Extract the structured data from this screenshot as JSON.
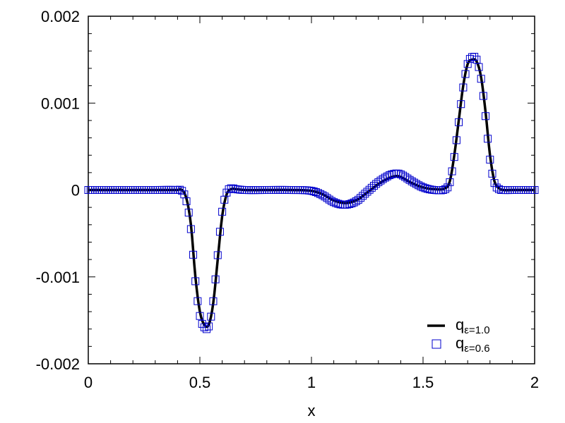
{
  "chart_data": {
    "type": "line",
    "title": "",
    "xlabel": "x",
    "ylabel": "",
    "xlim": [
      0,
      2
    ],
    "ylim": [
      -0.002,
      0.002
    ],
    "x_ticks": [
      0,
      0.5,
      1,
      1.5,
      2
    ],
    "x_tick_labels": [
      "0",
      "0.5",
      "1",
      "1.5",
      "2"
    ],
    "y_ticks": [
      -0.002,
      -0.001,
      0,
      0.001,
      0.002
    ],
    "y_tick_labels": [
      "-0.002",
      "-0.001",
      "0",
      "0.001",
      "0.002"
    ],
    "grid": false,
    "legend_position": "bottom-right",
    "series": [
      {
        "name": "q",
        "name_subscript": "ε=1.0",
        "style": "line",
        "color": "#000000",
        "x": [
          0,
          0.1,
          0.2,
          0.3,
          0.4,
          0.42,
          0.44,
          0.46,
          0.48,
          0.5,
          0.52,
          0.54,
          0.56,
          0.58,
          0.6,
          0.62,
          0.64,
          0.66,
          0.7,
          0.8,
          0.9,
          1.0,
          1.05,
          1.1,
          1.15,
          1.2,
          1.25,
          1.3,
          1.35,
          1.38,
          1.4,
          1.45,
          1.5,
          1.55,
          1.6,
          1.62,
          1.64,
          1.66,
          1.68,
          1.7,
          1.72,
          1.74,
          1.76,
          1.78,
          1.8,
          1.82,
          1.84,
          1.86,
          1.9,
          2.0
        ],
        "y": [
          0,
          0,
          0,
          0,
          0,
          0,
          -0.0001,
          -0.0004,
          -0.001,
          -0.0014,
          -0.00155,
          -0.00155,
          -0.0013,
          -0.0008,
          -0.0003,
          -5e-05,
          1e-05,
          1e-05,
          0,
          0,
          0,
          -1e-05,
          -5e-05,
          -0.00012,
          -0.00015,
          -0.00012,
          -3e-05,
          7e-05,
          0.00014,
          0.00016,
          0.00015,
          8e-05,
          3e-05,
          1e-05,
          2e-05,
          0.0001,
          0.0004,
          0.0008,
          0.0012,
          0.00145,
          0.0015,
          0.00148,
          0.0013,
          0.0009,
          0.0004,
          0.0001,
          2e-05,
          0,
          0,
          0
        ]
      },
      {
        "name": "q",
        "name_subscript": "ε=0.6",
        "style": "open-square",
        "color": "#0000cc",
        "x": [
          0,
          0.1,
          0.2,
          0.3,
          0.4,
          0.42,
          0.44,
          0.46,
          0.48,
          0.5,
          0.52,
          0.54,
          0.56,
          0.58,
          0.6,
          0.62,
          0.64,
          0.66,
          0.7,
          0.8,
          0.9,
          1.0,
          1.05,
          1.1,
          1.15,
          1.2,
          1.25,
          1.3,
          1.35,
          1.38,
          1.4,
          1.45,
          1.5,
          1.55,
          1.6,
          1.62,
          1.64,
          1.66,
          1.68,
          1.7,
          1.72,
          1.74,
          1.76,
          1.78,
          1.8,
          1.82,
          1.84,
          1.86,
          1.9,
          2.0
        ],
        "y": [
          0,
          0,
          0,
          0,
          0,
          -1e-05,
          -0.00013,
          -0.00045,
          -0.00105,
          -0.00145,
          -0.00158,
          -0.00157,
          -0.00128,
          -0.00075,
          -0.00025,
          -3e-05,
          2e-05,
          1e-05,
          0,
          0,
          0,
          -1e-05,
          -6e-05,
          -0.00014,
          -0.00017,
          -0.00013,
          -2e-05,
          9e-05,
          0.00017,
          0.00019,
          0.00018,
          0.0001,
          3e-05,
          0,
          1e-05,
          9e-05,
          0.00038,
          0.00078,
          0.00118,
          0.00145,
          0.00153,
          0.0015,
          0.00128,
          0.00085,
          0.00035,
          8e-05,
          1e-05,
          0,
          0,
          0
        ]
      }
    ]
  }
}
